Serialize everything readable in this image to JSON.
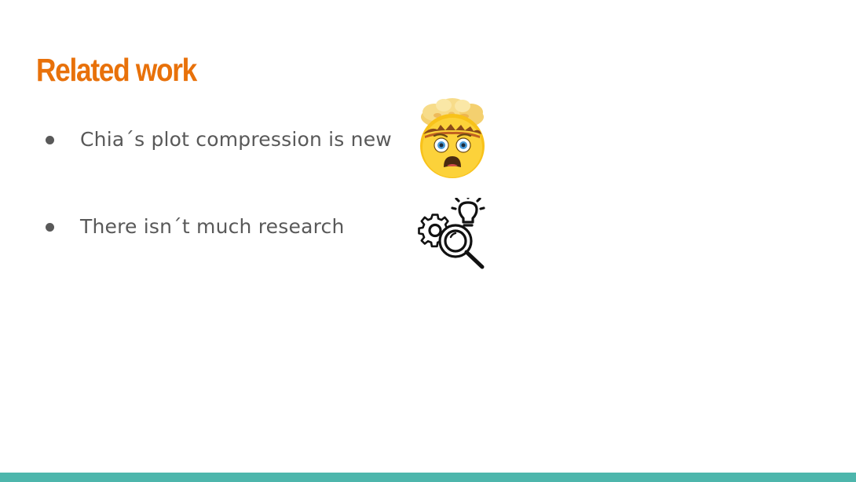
{
  "slide": {
    "title": "Related work",
    "bullets": [
      {
        "text": "Chia´s plot compression is new",
        "icon": "mind-blown-emoji-icon"
      },
      {
        "text": "There isn´t much research",
        "icon": "research-gears-magnifier-icon"
      }
    ]
  },
  "colors": {
    "title": "#e8710a",
    "body_text": "#595959",
    "accent_bar": "#4db6ac",
    "background": "#ffffff"
  }
}
